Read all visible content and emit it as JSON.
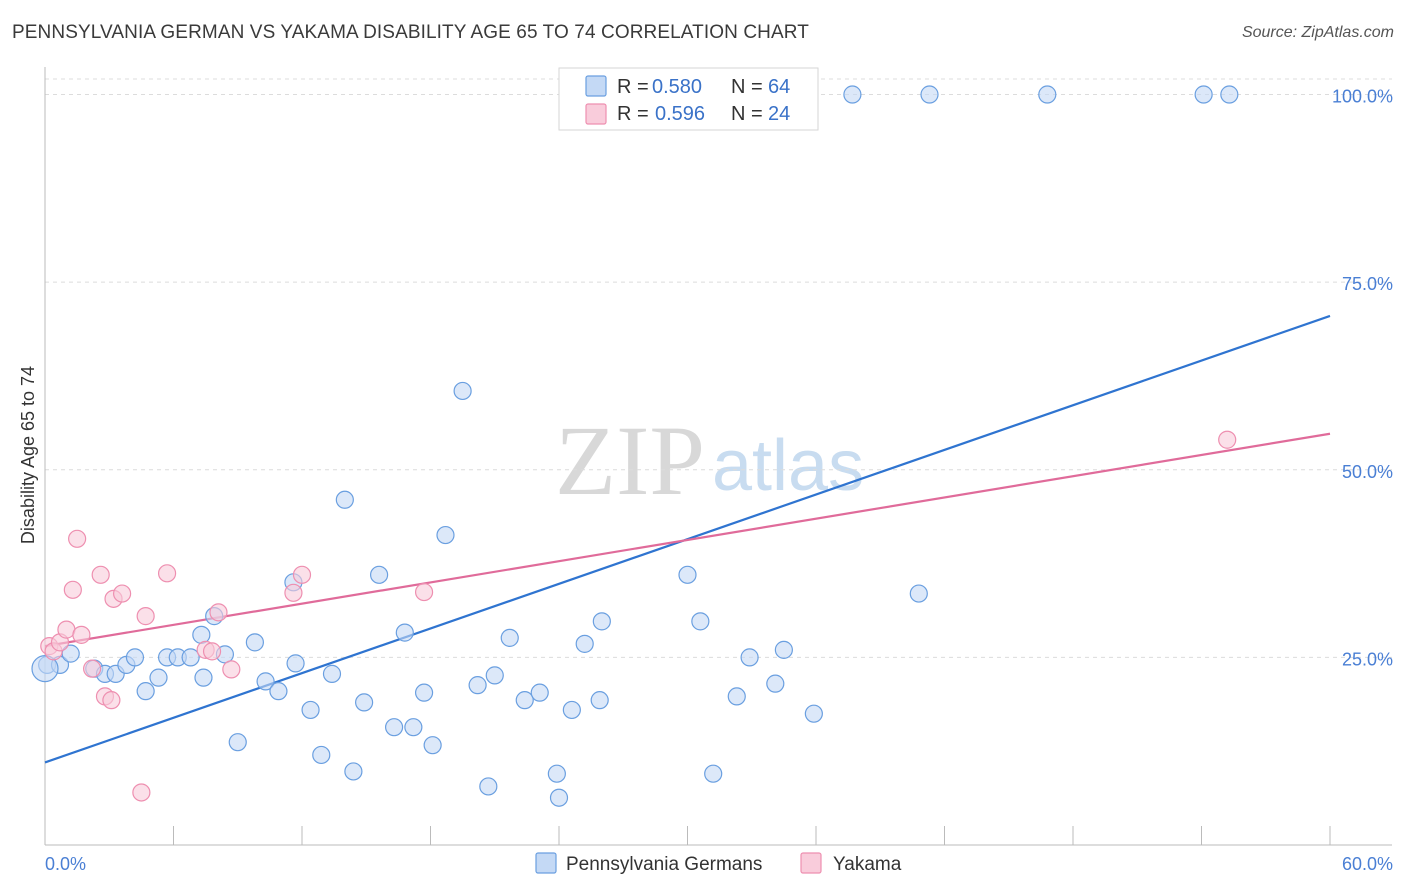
{
  "title": "PENNSYLVANIA GERMAN VS YAKAMA DISABILITY AGE 65 TO 74 CORRELATION CHART",
  "source": "Source: ZipAtlas.com",
  "watermark": {
    "zip": "ZIP",
    "atlas": "atlas"
  },
  "legend": {
    "rows": [
      {
        "r_label": "R =",
        "r_value": "0.580",
        "n_label": "N =",
        "n_value": "64"
      },
      {
        "r_label": "R =",
        "r_value": "0.596",
        "n_label": "N =",
        "n_value": "24"
      }
    ]
  },
  "bottom_legend": [
    "Pennsylvania Germans",
    "Yakama"
  ],
  "chart_data": {
    "type": "scatter",
    "xlabel": "",
    "ylabel": "Disability Age 65 to 74",
    "xlim": [
      0,
      60
    ],
    "ylim": [
      0,
      103
    ],
    "x_tick_labels": [
      "0.0%",
      "60.0%"
    ],
    "y_ticks": [
      25,
      50,
      75,
      100
    ],
    "y_tick_labels": [
      "25.0%",
      "50.0%",
      "75.0%",
      "100.0%"
    ],
    "grid": true,
    "legend_position": "top-center",
    "colors": {
      "blue": "#6a9fe0",
      "blue_fill": "#c4d9f5",
      "pink": "#ee8fb0",
      "pink_fill": "#f9ccdb",
      "blue_line": "#2f74d0",
      "pink_line": "#e06b9a"
    },
    "series": [
      {
        "name": "Pennsylvania Germans",
        "color": "#6a9fe0",
        "trend": {
          "x": [
            0,
            60
          ],
          "y": [
            11.0,
            70.5
          ]
        },
        "points": [
          [
            0.1,
            24.0
          ],
          [
            0.7,
            24.0
          ],
          [
            1.2,
            25.5
          ],
          [
            2.3,
            23.5
          ],
          [
            2.8,
            22.8
          ],
          [
            3.3,
            22.8
          ],
          [
            3.8,
            24.0
          ],
          [
            4.2,
            25.0
          ],
          [
            4.7,
            20.5
          ],
          [
            5.3,
            22.3
          ],
          [
            5.7,
            25.0
          ],
          [
            6.2,
            25.0
          ],
          [
            6.8,
            25.0
          ],
          [
            7.3,
            28.0
          ],
          [
            7.4,
            22.3
          ],
          [
            7.9,
            30.5
          ],
          [
            8.4,
            25.4
          ],
          [
            9.0,
            13.7
          ],
          [
            9.8,
            27.0
          ],
          [
            10.3,
            21.8
          ],
          [
            10.9,
            20.5
          ],
          [
            11.6,
            35.0
          ],
          [
            11.7,
            24.2
          ],
          [
            12.4,
            18.0
          ],
          [
            12.9,
            12.0
          ],
          [
            13.4,
            22.8
          ],
          [
            14.0,
            46.0
          ],
          [
            14.4,
            9.8
          ],
          [
            14.9,
            19.0
          ],
          [
            15.6,
            36.0
          ],
          [
            16.3,
            15.7
          ],
          [
            16.8,
            28.3
          ],
          [
            17.2,
            15.7
          ],
          [
            17.7,
            20.3
          ],
          [
            18.1,
            13.3
          ],
          [
            18.7,
            41.3
          ],
          [
            19.5,
            60.5
          ],
          [
            20.2,
            21.3
          ],
          [
            20.7,
            7.8
          ],
          [
            21.0,
            22.6
          ],
          [
            21.7,
            27.6
          ],
          [
            22.4,
            19.3
          ],
          [
            23.1,
            20.3
          ],
          [
            23.9,
            9.5
          ],
          [
            24.0,
            6.3
          ],
          [
            24.6,
            18.0
          ],
          [
            25.2,
            26.8
          ],
          [
            25.9,
            19.3
          ],
          [
            26.0,
            29.8
          ],
          [
            30.0,
            36.0
          ],
          [
            30.6,
            29.8
          ],
          [
            31.2,
            9.5
          ],
          [
            32.3,
            19.8
          ],
          [
            32.9,
            25.0
          ],
          [
            34.1,
            21.5
          ],
          [
            34.5,
            26.0
          ],
          [
            35.9,
            17.5
          ],
          [
            37.7,
            100.0
          ],
          [
            40.8,
            33.5
          ],
          [
            41.3,
            100.0
          ],
          [
            46.8,
            100.0
          ],
          [
            54.1,
            100.0
          ],
          [
            55.3,
            100.0
          ],
          [
            0.0,
            23.5
          ]
        ]
      },
      {
        "name": "Yakama",
        "color": "#ee8fb0",
        "trend": {
          "x": [
            0,
            60
          ],
          "y": [
            26.5,
            54.8
          ]
        },
        "points": [
          [
            0.2,
            26.5
          ],
          [
            0.4,
            25.8
          ],
          [
            0.7,
            27.0
          ],
          [
            1.0,
            28.7
          ],
          [
            1.3,
            34.0
          ],
          [
            1.5,
            40.8
          ],
          [
            1.7,
            28.0
          ],
          [
            2.2,
            23.5
          ],
          [
            2.6,
            36.0
          ],
          [
            2.8,
            19.8
          ],
          [
            3.1,
            19.3
          ],
          [
            3.2,
            32.8
          ],
          [
            3.6,
            33.5
          ],
          [
            4.7,
            30.5
          ],
          [
            4.5,
            7.0
          ],
          [
            5.7,
            36.2
          ],
          [
            7.5,
            26.0
          ],
          [
            7.8,
            25.8
          ],
          [
            8.1,
            31.0
          ],
          [
            8.7,
            23.4
          ],
          [
            11.6,
            33.6
          ],
          [
            12.0,
            36.0
          ],
          [
            17.7,
            33.7
          ],
          [
            55.2,
            54.0
          ]
        ]
      }
    ]
  }
}
